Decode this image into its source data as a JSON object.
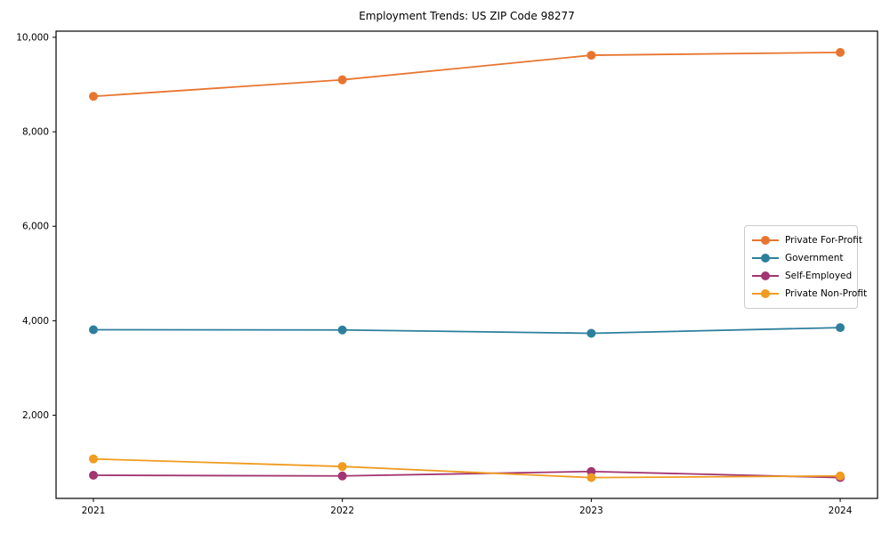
{
  "figure": {
    "title": "Employment Trends: US ZIP Code 98277"
  },
  "chart_data": {
    "type": "line",
    "title": "Employment Trends: US ZIP Code 98277",
    "xlabel": "",
    "ylabel": "",
    "x": [
      2021,
      2022,
      2023,
      2024
    ],
    "x_tick_labels": [
      "2021",
      "2022",
      "2023",
      "2024"
    ],
    "series": [
      {
        "name": "Private For-Profit",
        "color": "#e8752f",
        "values": [
          8750,
          9100,
          9620,
          9680
        ]
      },
      {
        "name": "Government",
        "color": "#2d7f9d",
        "values": [
          3810,
          3805,
          3735,
          3855
        ]
      },
      {
        "name": "Self-Employed",
        "color": "#a23572",
        "values": [
          730,
          715,
          810,
          680
        ]
      },
      {
        "name": "Private Non-Profit",
        "color": "#ef9c20",
        "values": [
          1075,
          915,
          680,
          715
        ]
      }
    ],
    "xlim": [
      2020.85,
      2024.15
    ],
    "ylim": [
      240,
      10130
    ],
    "yticks": [
      2000,
      4000,
      6000,
      8000,
      10000
    ],
    "ytick_labels": [
      "2,000",
      "4,000",
      "6,000",
      "8,000",
      "10,000"
    ],
    "grid": false,
    "legend_position": "center right",
    "marker": "circle",
    "line_width": 1.8,
    "marker_radius": 5,
    "background": "#ffffff",
    "axis_color": "#000000"
  }
}
